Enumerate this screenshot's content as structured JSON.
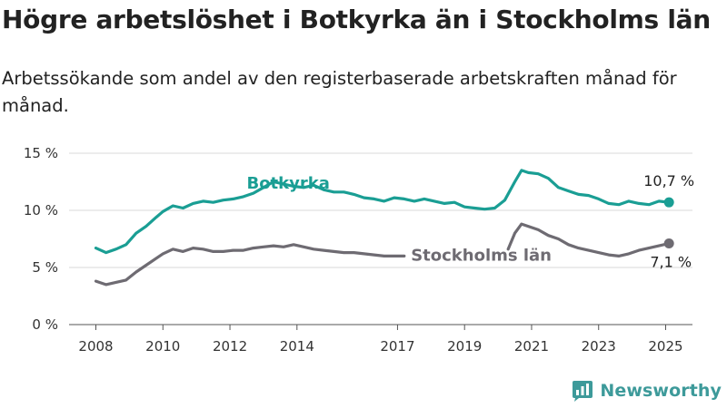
{
  "header": {
    "title": "Högre arbetslöshet i Botkyrka än i Stockholms län",
    "subtitle": "Arbetssökande som andel av den registerbaserade arbetskraften månad för månad."
  },
  "brand": {
    "name": "Newsworthy"
  },
  "colors": {
    "botkyrka": "#1a9e94",
    "stockholm": "#6e6b72",
    "grid": "#d9d9d9",
    "brand": "#3d9a9a"
  },
  "chart_data": {
    "type": "line",
    "x_unit": "year",
    "xlim": [
      2007.2,
      2025.8
    ],
    "ylim": [
      0,
      15
    ],
    "y_ticks": [
      {
        "value": 0,
        "label": "0 %"
      },
      {
        "value": 5,
        "label": "5 %"
      },
      {
        "value": 10,
        "label": "10 %"
      },
      {
        "value": 15,
        "label": "15 %"
      }
    ],
    "x_ticks": [
      {
        "value": 2008,
        "label": "2008"
      },
      {
        "value": 2010,
        "label": "2010"
      },
      {
        "value": 2012,
        "label": "2012"
      },
      {
        "value": 2014,
        "label": "2014"
      },
      {
        "value": 2017,
        "label": "2017"
      },
      {
        "value": 2019,
        "label": "2019"
      },
      {
        "value": 2021,
        "label": "2021"
      },
      {
        "value": 2023,
        "label": "2023"
      },
      {
        "value": 2025,
        "label": "2025"
      }
    ],
    "grid": "horizontal",
    "series": [
      {
        "name": "Botkyrka",
        "color": "#1a9e94",
        "end_label": "10,7 %",
        "x": [
          2008.0,
          2008.3,
          2008.6,
          2008.9,
          2009.2,
          2009.5,
          2009.8,
          2010.0,
          2010.3,
          2010.6,
          2010.9,
          2011.2,
          2011.5,
          2011.8,
          2012.1,
          2012.4,
          2012.7,
          2013.0,
          2013.3,
          2013.6,
          2013.9,
          2014.2,
          2014.5,
          2014.8,
          2015.1,
          2015.4,
          2015.7,
          2016.0,
          2016.3,
          2016.6,
          2016.9,
          2017.2,
          2017.5,
          2017.8,
          2018.1,
          2018.4,
          2018.7,
          2019.0,
          2019.3,
          2019.6,
          2019.9,
          2020.2,
          2020.5,
          2020.7,
          2020.9,
          2021.2,
          2021.5,
          2021.8,
          2022.1,
          2022.4,
          2022.7,
          2023.0,
          2023.3,
          2023.6,
          2023.9,
          2024.2,
          2024.5,
          2024.8,
          2025.1
        ],
        "values": [
          6.7,
          6.3,
          6.6,
          7.0,
          8.0,
          8.6,
          9.4,
          9.9,
          10.4,
          10.2,
          10.6,
          10.8,
          10.7,
          10.9,
          11.0,
          11.2,
          11.5,
          12.0,
          12.5,
          12.3,
          12.1,
          12.0,
          12.2,
          11.8,
          11.6,
          11.6,
          11.4,
          11.1,
          11.0,
          10.8,
          11.1,
          11.0,
          10.8,
          11.0,
          10.8,
          10.6,
          10.7,
          10.3,
          10.2,
          10.1,
          10.2,
          10.9,
          12.5,
          13.5,
          13.3,
          13.2,
          12.8,
          12.0,
          11.7,
          11.4,
          11.3,
          11.0,
          10.6,
          10.5,
          10.8,
          10.6,
          10.5,
          10.8,
          10.7
        ]
      },
      {
        "name": "Stockholms län",
        "color": "#6e6b72",
        "end_label": "7,1 %",
        "x": [
          2008.0,
          2008.3,
          2008.6,
          2008.9,
          2009.2,
          2009.5,
          2009.8,
          2010.0,
          2010.3,
          2010.6,
          2010.9,
          2011.2,
          2011.5,
          2011.8,
          2012.1,
          2012.4,
          2012.7,
          2013.0,
          2013.3,
          2013.6,
          2013.9,
          2014.2,
          2014.5,
          2014.8,
          2015.1,
          2015.4,
          2015.7,
          2016.0,
          2016.3,
          2016.6,
          2016.9,
          2017.2,
          2020.3,
          2020.5,
          2020.7,
          2020.9,
          2021.2,
          2021.5,
          2021.8,
          2022.1,
          2022.4,
          2022.7,
          2023.0,
          2023.3,
          2023.6,
          2023.9,
          2024.2,
          2024.5,
          2024.8,
          2025.1
        ],
        "values": [
          3.8,
          3.5,
          3.7,
          3.9,
          4.6,
          5.2,
          5.8,
          6.2,
          6.6,
          6.4,
          6.7,
          6.6,
          6.4,
          6.4,
          6.5,
          6.5,
          6.7,
          6.8,
          6.9,
          6.8,
          7.0,
          6.8,
          6.6,
          6.5,
          6.4,
          6.3,
          6.3,
          6.2,
          6.1,
          6.0,
          6.0,
          6.0,
          6.6,
          8.0,
          8.8,
          8.6,
          8.3,
          7.8,
          7.5,
          7.0,
          6.7,
          6.5,
          6.3,
          6.1,
          6.0,
          6.2,
          6.5,
          6.7,
          6.9,
          7.1
        ],
        "segment_break_after": 31
      }
    ]
  }
}
